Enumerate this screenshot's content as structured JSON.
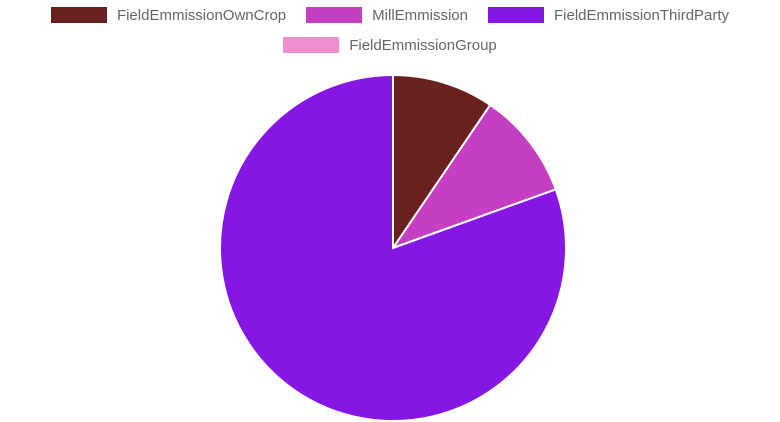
{
  "chart_data": {
    "type": "pie",
    "title": "",
    "legend_position": "top",
    "series": [
      {
        "labels": [
          "FieldEmmissionOwnCrop",
          "MillEmmission",
          "FieldEmmissionThirdParty",
          "FieldEmmissionGroup"
        ],
        "values": [
          9.5,
          10.0,
          80.5,
          0
        ]
      }
    ],
    "colors": [
      "#6b2020",
      "#c63ec1",
      "#8516e3",
      "#f08fd0"
    ],
    "slice_border_color": "#ffffff"
  }
}
